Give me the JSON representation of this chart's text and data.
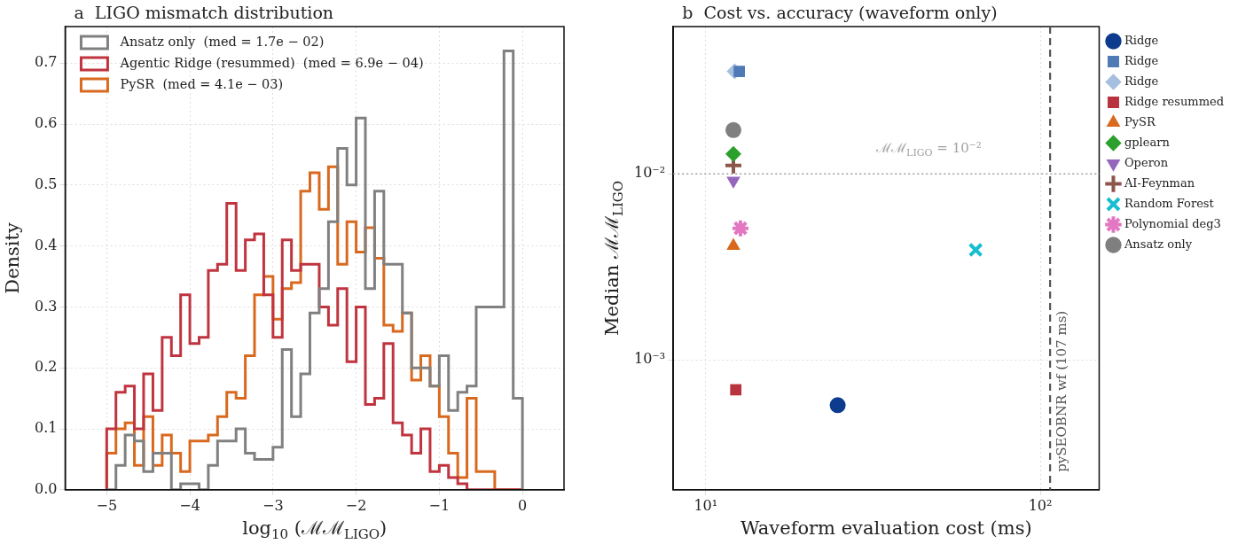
{
  "chart_data": [
    {
      "type": "histogram",
      "title": "a  LIGO mismatch distribution",
      "xlabel": "log$_{10}$ (ℳℳ$_{LIGO}$)",
      "ylabel": "Density",
      "xlim": [
        -5.5,
        0.5
      ],
      "xticks": [
        {
          "value": -5,
          "label": "−5"
        },
        {
          "value": -4,
          "label": "−4"
        },
        {
          "value": -3,
          "label": "−3"
        },
        {
          "value": -2,
          "label": "−2"
        },
        {
          "value": -1,
          "label": "−1"
        },
        0
      ],
      "ylim": [
        0,
        0.76
      ],
      "yticks": [
        {
          "value": 0,
          "label": "0.0"
        },
        0.1,
        0.2,
        0.3,
        0.4,
        0.5,
        0.6,
        0.7
      ],
      "grid": true,
      "legend": "top left",
      "bins": [
        -5,
        -4.889,
        -4.778,
        -4.667,
        -4.556,
        -4.444,
        -4.333,
        -4.222,
        -4.111,
        -4,
        -3.889,
        -3.778,
        -3.667,
        -3.556,
        -3.444,
        -3.333,
        -3.222,
        -3.111,
        -3,
        -2.889,
        -2.778,
        -2.667,
        -2.556,
        -2.444,
        -2.333,
        -2.222,
        -2.111,
        -2,
        -1.889,
        -1.778,
        -1.667,
        -1.556,
        -1.444,
        -1.333,
        -1.222,
        -1.111,
        -1,
        -0.889,
        -0.778,
        -0.667,
        -0.556,
        -0.444,
        -0.333,
        -0.222,
        -0.111,
        0
      ],
      "series": [
        {
          "name": "Ansatz only  (med = 1.7e − 02)",
          "color": "#808080",
          "values": [
            0,
            0.04,
            0.09,
            0.08,
            0.03,
            0.06,
            0.06,
            0,
            0.01,
            0.01,
            0,
            0.04,
            0.08,
            0.08,
            0.1,
            0.06,
            0.05,
            0.05,
            0.07,
            0.23,
            0.12,
            0.19,
            0.29,
            0.33,
            0.44,
            0.56,
            0.5,
            0.61,
            0.33,
            0.49,
            0.37,
            0.37,
            0.29,
            0.2,
            0.2,
            0.17,
            0.22,
            0.13,
            0.16,
            0.17,
            0.3,
            0.3,
            0.3,
            0.72,
            0.15
          ]
        },
        {
          "name": "Agentic Ridge (resummed)  (med = 6.9e − 04)",
          "color": "#c0343f",
          "values": [
            0.1,
            0.16,
            0.17,
            0.1,
            0.19,
            0.13,
            0.25,
            0.22,
            0.32,
            0.24,
            0.25,
            0.36,
            0.37,
            0.47,
            0.36,
            0.41,
            0.42,
            0.32,
            0.25,
            0.41,
            0.36,
            0.37,
            0.37,
            0.3,
            0.27,
            0.33,
            0.21,
            0.3,
            0.14,
            0.15,
            0.24,
            0.11,
            0.09,
            0.06,
            0.1,
            0.03,
            0.04,
            0.02,
            0.01,
            0,
            0,
            0,
            0,
            0,
            0
          ]
        },
        {
          "name": "PySR  (med = 4.1e − 03)",
          "color": "#d9691e",
          "values": [
            0.06,
            0.1,
            0.11,
            0.04,
            0.12,
            0.04,
            0.09,
            0.06,
            0.03,
            0.08,
            0.08,
            0.09,
            0.12,
            0.16,
            0.15,
            0.22,
            0.32,
            0.35,
            0.28,
            0.33,
            0.34,
            0.49,
            0.52,
            0.46,
            0.53,
            0.37,
            0.44,
            0.39,
            0.43,
            0.38,
            0.27,
            0.26,
            0.29,
            0.18,
            0.22,
            0.17,
            0.12,
            0.06,
            0.02,
            0.15,
            0.03,
            0.03,
            0,
            0,
            0
          ]
        }
      ]
    },
    {
      "type": "scatter",
      "title": "b  Cost vs. accuracy (waveform only)",
      "xlabel": "Waveform evaluation cost (ms)",
      "ylabel": "Median ℳℳ$_{LIGO}$",
      "log": "xy",
      "xlim": [
        8,
        150
      ],
      "xticks": [
        {
          "value": 10,
          "label": "10¹"
        },
        {
          "value": 100,
          "label": "10²"
        }
      ],
      "ylim": [
        0.0002,
        0.062
      ],
      "yticks": [
        {
          "value": 0.001,
          "label": "10⁻³"
        },
        {
          "value": 0.01,
          "label": "10⁻²"
        }
      ],
      "grid": true,
      "legend": "right",
      "ref_lines": [
        {
          "axis": "y",
          "value": 0.01,
          "label": "ℳℳ$_{LIGO}$ = 10⁻²",
          "color": "#a0a0a0",
          "line_style": "dotted"
        },
        {
          "axis": "x",
          "value": 107,
          "label": "pySEOBNR wf (107 ms)",
          "color": "#555555",
          "line_style": "dashed"
        }
      ],
      "series": [
        {
          "name": "Ridge",
          "color": "#0d3b8e",
          "marker": "circle",
          "x": [
            24.8
          ],
          "values": [
            0.00057
          ]
        },
        {
          "name": "Ridge",
          "color": "#4f7ab5",
          "marker": "square",
          "x": [
            12.6
          ],
          "values": [
            0.0356
          ]
        },
        {
          "name": "Ridge",
          "color": "#a7bfdf",
          "marker": "diamond",
          "x": [
            12.2
          ],
          "values": [
            0.0356
          ]
        },
        {
          "name": "Ridge resummed",
          "color": "#b8333d",
          "marker": "square",
          "x": [
            12.3
          ],
          "values": [
            0.00069
          ]
        },
        {
          "name": "PySR",
          "color": "#d9691e",
          "marker": "triangle",
          "x": [
            12.1
          ],
          "values": [
            0.0041
          ]
        },
        {
          "name": "gplearn",
          "color": "#2ca02c",
          "marker": "diamond",
          "x": [
            12.1
          ],
          "values": [
            0.0128
          ]
        },
        {
          "name": "Operon",
          "color": "#9467bd",
          "marker": "triangle",
          "x": [
            12.1
          ],
          "values": [
            0.0092
          ]
        },
        {
          "name": "AI-Feynman",
          "color": "#8c564b",
          "marker": "cross",
          "x": [
            12.1
          ],
          "values": [
            0.0111
          ]
        },
        {
          "name": "Random Forest",
          "color": "#17becf",
          "marker": "cross",
          "x": [
            64.1
          ],
          "values": [
            0.0039
          ]
        },
        {
          "name": "Polynomial deg3",
          "color": "#e377c2",
          "marker": "cross",
          "x": [
            12.7
          ],
          "values": [
            0.0051
          ]
        },
        {
          "name": "Ansatz only",
          "color": "#7f7f7f",
          "marker": "circle",
          "x": [
            12.1
          ],
          "values": [
            0.0172
          ]
        }
      ]
    }
  ]
}
